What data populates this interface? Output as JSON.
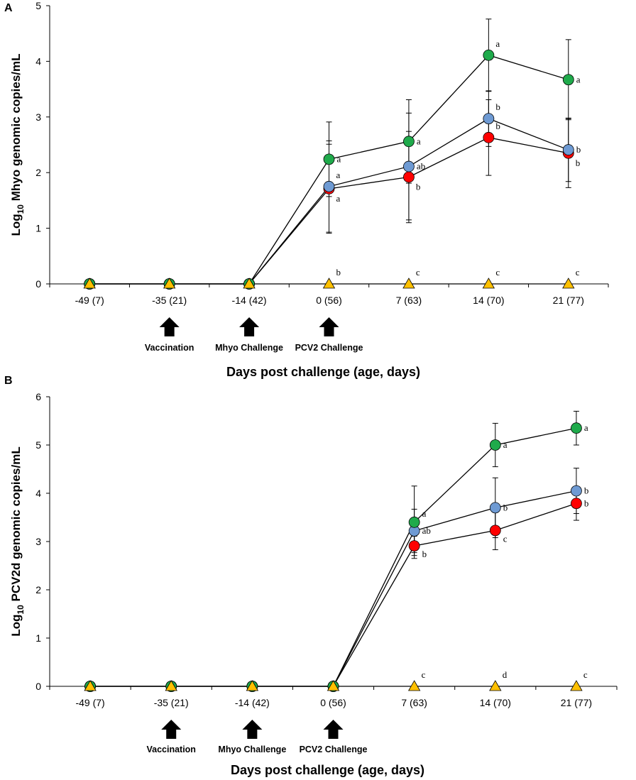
{
  "chart_data": [
    {
      "panel": "A",
      "type": "line",
      "ylabel": "Log10 Mhyo genomic copies/mL",
      "ylabel_main": "Log",
      "ylabel_sub": "10",
      "ylabel_rest": " Mhyo genomic copies/mL",
      "xlabel": "Days post challenge (age, days)",
      "ylim": [
        0,
        5
      ],
      "yticks": [
        "0",
        "1",
        "2",
        "3",
        "4",
        "5"
      ],
      "categories": [
        "-49 (7)",
        "-35 (21)",
        "-14 (42)",
        "0 (56)",
        "7 (63)",
        "14 (70)",
        "21 (77)"
      ],
      "events": [
        {
          "label": "Vaccination",
          "index": 1
        },
        {
          "label": "Mhyo Challenge",
          "index": 2
        },
        {
          "label": "PCV2 Challenge",
          "index": 3
        }
      ],
      "series": [
        {
          "name": "red",
          "color": "#ff0000",
          "marker": "circle",
          "values": [
            0,
            0,
            0,
            1.71,
            1.92,
            2.63,
            2.35
          ],
          "err": [
            0,
            0,
            0,
            0.8,
            0.82,
            0.68,
            0.62
          ],
          "letters": [
            "",
            "",
            "",
            "a",
            "b",
            "b",
            "b"
          ],
          "letter_pos": [
            "",
            "",
            "",
            "below",
            "below",
            "above",
            "below"
          ]
        },
        {
          "name": "blue",
          "color": "#6e9ad3",
          "marker": "circle",
          "values": [
            0,
            0,
            0,
            1.75,
            2.11,
            2.97,
            2.41
          ],
          "err": [
            0,
            0,
            0,
            0.82,
            0.96,
            0.5,
            0.57
          ],
          "letters": [
            "",
            "",
            "",
            "a",
            "ab",
            "b",
            "b"
          ],
          "letter_pos": [
            "",
            "",
            "",
            "above",
            "right",
            "above",
            "right"
          ]
        },
        {
          "name": "green",
          "color": "#1faa4b",
          "marker": "circle",
          "values": [
            0,
            0,
            0,
            2.24,
            2.56,
            4.11,
            3.67
          ],
          "err": [
            0,
            0,
            0,
            0.67,
            0.75,
            0.65,
            0.72
          ],
          "letters": [
            "",
            "",
            "",
            "a",
            "a",
            "a",
            "a"
          ],
          "letter_pos": [
            "",
            "",
            "",
            "right",
            "right",
            "above",
            "right"
          ]
        },
        {
          "name": "yellow",
          "color": "#ffc000",
          "marker": "triangle",
          "values": [
            0,
            0,
            0,
            0,
            0,
            0,
            0
          ],
          "err": [
            0,
            0,
            0,
            0,
            0,
            0,
            0
          ],
          "letters": [
            "",
            "",
            "",
            "b",
            "c",
            "c",
            "c"
          ],
          "letter_pos": [
            "",
            "",
            "",
            "above",
            "above",
            "above",
            "above"
          ]
        }
      ]
    },
    {
      "panel": "B",
      "type": "line",
      "ylabel": "Log10 PCV2d genomic copies/mL",
      "ylabel_main": "Log",
      "ylabel_sub": "10",
      "ylabel_rest": " PCV2d genomic copies/mL",
      "xlabel": "Days post challenge (age, days)",
      "ylim": [
        0,
        6
      ],
      "yticks": [
        "0",
        "1",
        "2",
        "3",
        "4",
        "5",
        "6"
      ],
      "categories": [
        "-49 (7)",
        "-35 (21)",
        "-14 (42)",
        "0 (56)",
        "7 (63)",
        "14 (70)",
        "21 (77)"
      ],
      "events": [
        {
          "label": "Vaccination",
          "index": 1
        },
        {
          "label": "Mhyo Challenge",
          "index": 2
        },
        {
          "label": "PCV2 Challenge",
          "index": 3
        }
      ],
      "series": [
        {
          "name": "red",
          "color": "#ff0000",
          "marker": "circle",
          "values": [
            0,
            0,
            0,
            0,
            2.91,
            3.23,
            3.79
          ],
          "err": [
            0,
            0,
            0,
            0,
            0.2,
            0.4,
            0.35
          ],
          "letters": [
            "",
            "",
            "",
            "",
            "b",
            "c",
            "b"
          ],
          "letter_pos": [
            "",
            "",
            "",
            "",
            "right-below",
            "right-below",
            "right"
          ]
        },
        {
          "name": "blue",
          "color": "#6e9ad3",
          "marker": "circle",
          "values": [
            0,
            0,
            0,
            0,
            3.22,
            3.7,
            4.05
          ],
          "err": [
            0,
            0,
            0,
            0,
            0.45,
            0.62,
            0.47
          ],
          "letters": [
            "",
            "",
            "",
            "",
            "ab",
            "b",
            "b"
          ],
          "letter_pos": [
            "",
            "",
            "",
            "",
            "right",
            "right",
            "right"
          ]
        },
        {
          "name": "green",
          "color": "#1faa4b",
          "marker": "circle",
          "values": [
            0,
            0,
            0,
            0,
            3.4,
            5.0,
            5.35
          ],
          "err": [
            0,
            0,
            0,
            0,
            0.75,
            0.45,
            0.35
          ],
          "letters": [
            "",
            "",
            "",
            "",
            "a",
            "a",
            "a"
          ],
          "letter_pos": [
            "",
            "",
            "",
            "",
            "right-above",
            "right",
            "right"
          ]
        },
        {
          "name": "yellow",
          "color": "#ffc000",
          "marker": "triangle",
          "values": [
            0,
            0,
            0,
            0,
            0,
            0,
            0
          ],
          "err": [
            0,
            0,
            0,
            0,
            0,
            0,
            0
          ],
          "letters": [
            "",
            "",
            "",
            "",
            "c",
            "d",
            "c"
          ],
          "letter_pos": [
            "",
            "",
            "",
            "",
            "above",
            "above",
            "above"
          ]
        }
      ]
    }
  ]
}
